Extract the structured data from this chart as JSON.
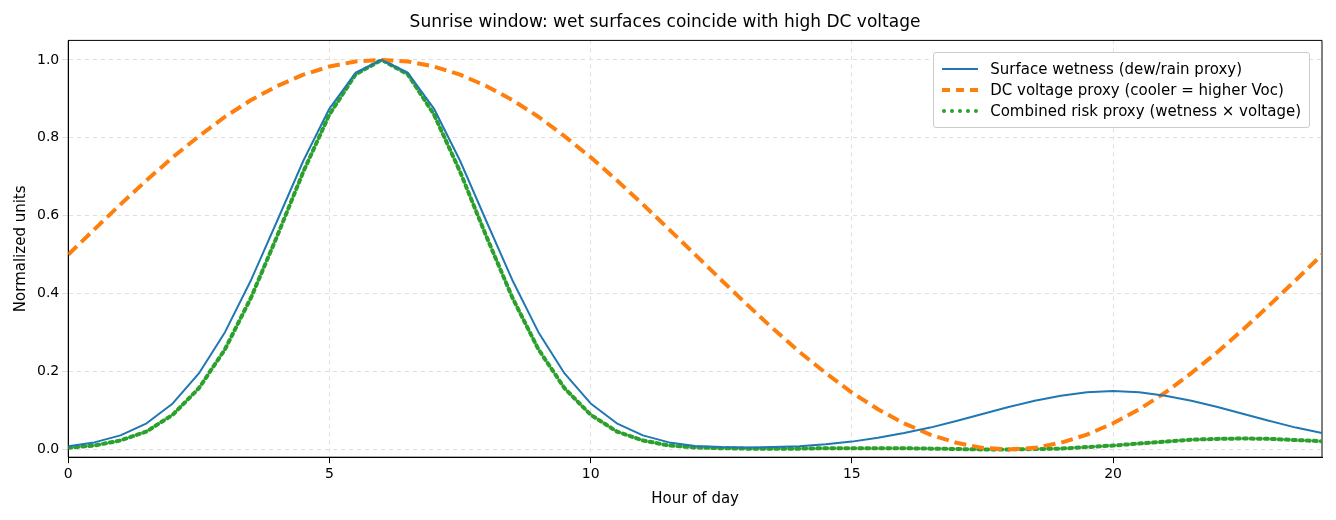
{
  "chart_data": {
    "type": "line",
    "title": "Sunrise window: wet surfaces coincide with high DC voltage",
    "xlabel": "Hour of day",
    "ylabel": "Normalized units",
    "x": [
      0,
      0.5,
      1,
      1.5,
      2,
      2.5,
      3,
      3.5,
      4,
      4.5,
      5,
      5.5,
      6,
      6.5,
      7,
      7.5,
      8,
      8.5,
      9,
      9.5,
      10,
      10.5,
      11,
      11.5,
      12,
      12.5,
      13,
      13.5,
      14,
      14.5,
      15,
      15.5,
      16,
      16.5,
      17,
      17.5,
      18,
      18.5,
      19,
      19.5,
      20,
      20.5,
      21,
      21.5,
      22,
      22.5,
      23,
      23.5,
      24
    ],
    "series": [
      {
        "name": "Surface wetness (dew/rain proxy)",
        "color": "#1f77b4",
        "line_style": "solid",
        "values": [
          0.008,
          0.018,
          0.036,
          0.067,
          0.118,
          0.195,
          0.301,
          0.435,
          0.587,
          0.741,
          0.875,
          0.967,
          1,
          0.967,
          0.875,
          0.741,
          0.587,
          0.435,
          0.301,
          0.195,
          0.118,
          0.067,
          0.036,
          0.018,
          0.009,
          0.006,
          0.005,
          0.006,
          0.008,
          0.013,
          0.02,
          0.03,
          0.042,
          0.056,
          0.073,
          0.091,
          0.109,
          0.125,
          0.138,
          0.147,
          0.15,
          0.147,
          0.138,
          0.125,
          0.109,
          0.091,
          0.073,
          0.056,
          0.042
        ]
      },
      {
        "name": "DC voltage proxy (cooler = higher Voc)",
        "color": "#ff7f0e",
        "line_style": "dashed",
        "values": [
          0.5,
          0.565,
          0.629,
          0.691,
          0.75,
          0.804,
          0.854,
          0.897,
          0.933,
          0.962,
          0.983,
          0.996,
          1,
          0.996,
          0.983,
          0.962,
          0.933,
          0.897,
          0.854,
          0.804,
          0.75,
          0.691,
          0.629,
          0.565,
          0.5,
          0.435,
          0.371,
          0.309,
          0.25,
          0.196,
          0.146,
          0.103,
          0.067,
          0.038,
          0.017,
          0.004,
          0,
          0.004,
          0.017,
          0.038,
          0.067,
          0.103,
          0.146,
          0.196,
          0.25,
          0.309,
          0.371,
          0.435,
          0.5
        ]
      },
      {
        "name": "Combined risk proxy (wetness × voltage)",
        "color": "#2ca02c",
        "line_style": "dotted",
        "values": [
          0.004,
          0.01,
          0.023,
          0.046,
          0.089,
          0.157,
          0.257,
          0.39,
          0.548,
          0.713,
          0.86,
          0.963,
          1,
          0.963,
          0.86,
          0.713,
          0.548,
          0.39,
          0.257,
          0.157,
          0.089,
          0.046,
          0.023,
          0.01,
          0.005,
          0.003,
          0.002,
          0.002,
          0.002,
          0.003,
          0.003,
          0.003,
          0.003,
          0.002,
          0.001,
          0,
          0,
          0.001,
          0.002,
          0.006,
          0.01,
          0.015,
          0.02,
          0.025,
          0.027,
          0.028,
          0.027,
          0.024,
          0.021
        ]
      }
    ],
    "xlim": [
      0,
      24
    ],
    "xticks": [
      0,
      5,
      10,
      15,
      20
    ],
    "ylim": [
      -0.02,
      1.05
    ],
    "yticks": [
      {
        "value": 0,
        "label": "0.0"
      },
      {
        "value": 0.2,
        "label": "0.2"
      },
      {
        "value": 0.4,
        "label": "0.4"
      },
      {
        "value": 0.6,
        "label": "0.6"
      },
      {
        "value": 0.8,
        "label": "0.8"
      },
      {
        "value": 1,
        "label": "1.0"
      }
    ],
    "grid": true,
    "legend": "top right",
    "marker": "none"
  }
}
